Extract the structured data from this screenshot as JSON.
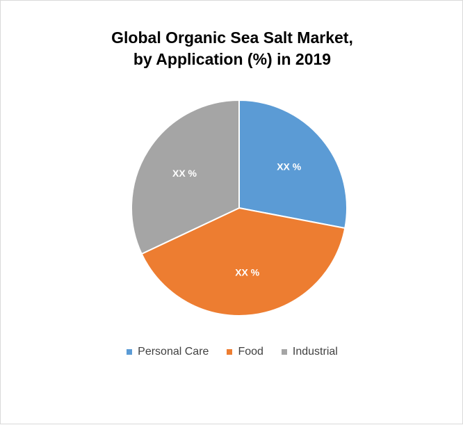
{
  "chart_data": {
    "type": "pie",
    "title_line1": "Global Organic Sea Salt Market,",
    "title_line2": "by Application (%) in 2019",
    "categories": [
      "Personal Care",
      "Food",
      "Industrial"
    ],
    "values": [
      28,
      40,
      32
    ],
    "data_labels": [
      "XX %",
      "XX %",
      "XX %"
    ],
    "colors": [
      "#5b9bd5",
      "#ed7d31",
      "#a5a5a5"
    ],
    "legend_position": "bottom"
  }
}
